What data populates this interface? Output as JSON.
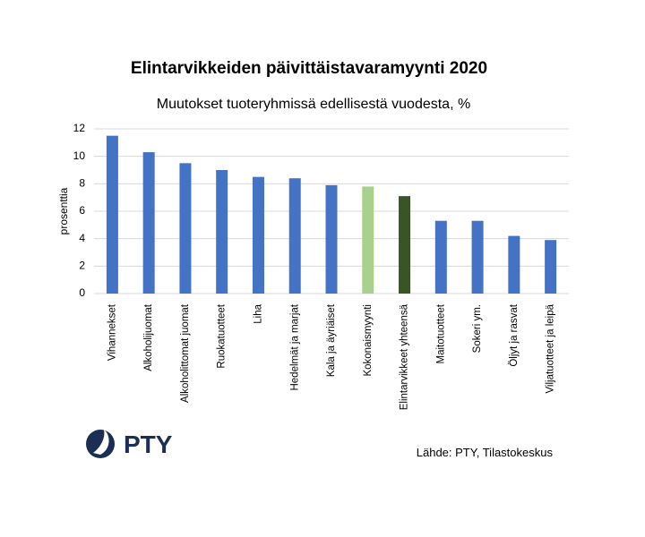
{
  "chart_data": {
    "type": "bar",
    "title": "Elintarvikkeiden päivittäistavaramyynti 2020",
    "subtitle": "Muutokset tuoteryhmissä edellisestä vuodesta, %",
    "y_label": "prosenttia",
    "categories": [
      "Vihannekset",
      "Alkoholijuomat",
      "Alkoholittomat juomat",
      "Ruokatuotteet",
      "Liha",
      "Hedelmät ja marjat",
      "Kala ja äyriäiset",
      "Kokonaismyynti",
      "Elintarvikkeet yhteensä",
      "Maitotuotteet",
      "Sokeri ym.",
      "Öljyt ja rasvat",
      "Viljatuotteet ja leipä"
    ],
    "values": [
      11.5,
      10.3,
      9.5,
      9.0,
      8.5,
      8.4,
      7.9,
      7.8,
      7.1,
      5.3,
      5.3,
      4.2,
      3.9
    ],
    "colors": [
      "#4472c4",
      "#4472c4",
      "#4472c4",
      "#4472c4",
      "#4472c4",
      "#4472c4",
      "#4472c4",
      "#a9d18e",
      "#375623",
      "#4472c4",
      "#4472c4",
      "#4472c4",
      "#4472c4"
    ],
    "ylim": [
      0,
      12
    ],
    "yticks": [
      0,
      2,
      4,
      6,
      8,
      10,
      12
    ],
    "grid": true,
    "source": "Lähde: PTY, Tilastokeskus",
    "logo_text": "PTY"
  }
}
